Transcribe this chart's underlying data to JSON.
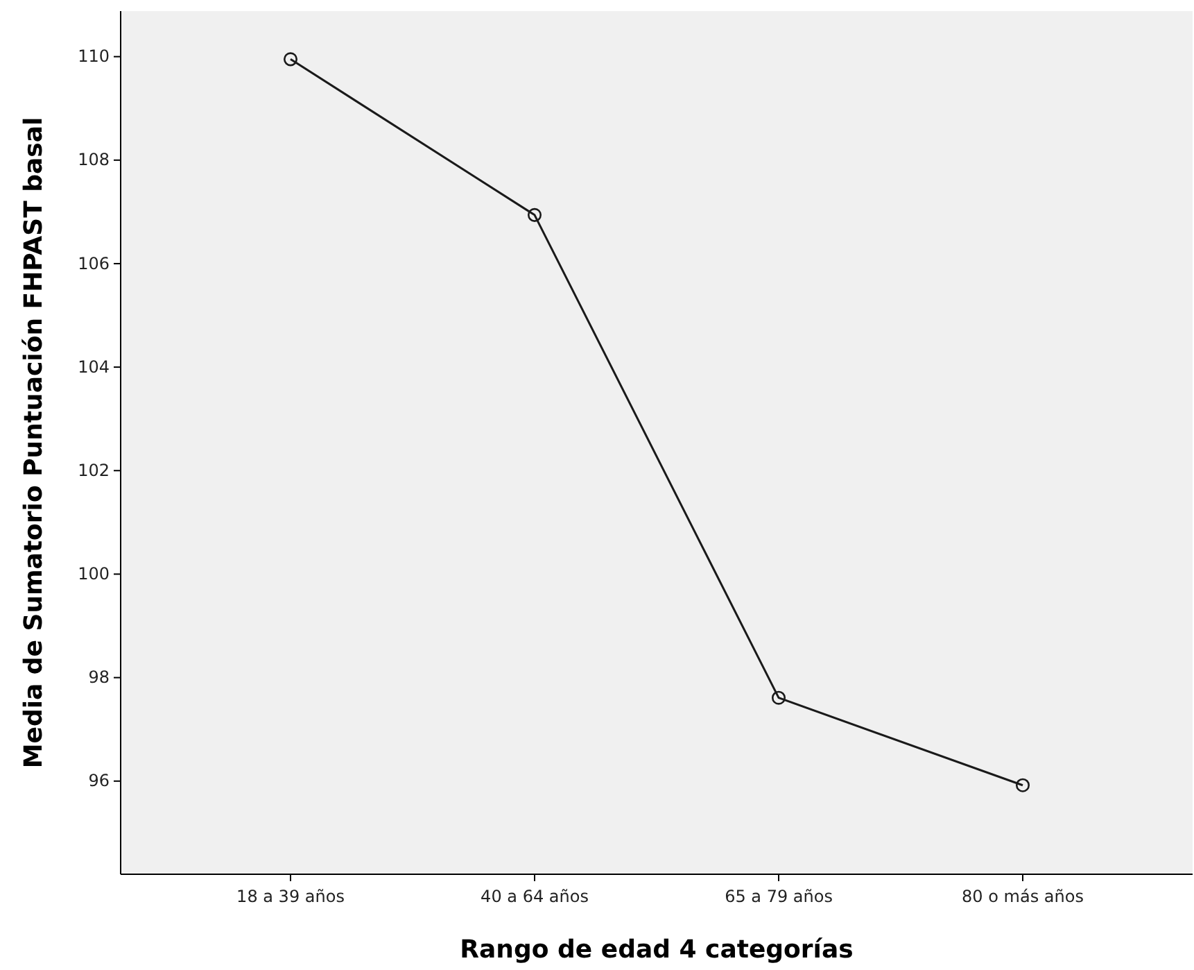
{
  "chart_data": {
    "type": "line",
    "xlabel": "Rango de edad 4 categorías",
    "ylabel": "Media de Sumatorio Puntuación FHPAST basal",
    "categories": [
      "18 a 39 años",
      "40 a 64 años",
      "65 a 79 años",
      "80 o más años"
    ],
    "series": [
      {
        "color": "#1a1a1a",
        "values": [
          109.95,
          106.94,
          97.61,
          95.92
        ]
      }
    ],
    "ylim": [
      94.2,
      110.88
    ],
    "yticks": [
      96,
      98,
      100,
      102,
      104,
      106,
      108,
      110
    ],
    "grid": false,
    "marker": "circle",
    "line_style": "solid"
  }
}
